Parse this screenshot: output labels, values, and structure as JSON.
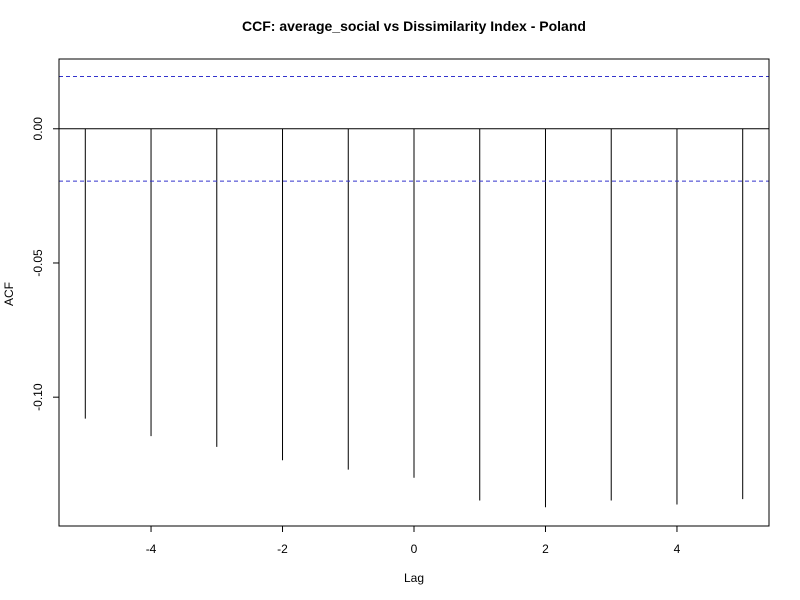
{
  "chart_data": {
    "type": "bar",
    "title": "CCF: average_social vs Dissimilarity Index - Poland",
    "xlabel": "Lag",
    "ylabel": "ACF",
    "xlim": [
      -5.4,
      5.4
    ],
    "ylim": [
      -0.148,
      0.026
    ],
    "x_ticks": [
      -4,
      -2,
      0,
      2,
      4
    ],
    "x_tick_labels": [
      "-4",
      "-2",
      "0",
      "2",
      "4"
    ],
    "y_ticks": [
      0.0,
      -0.05,
      -0.1
    ],
    "y_tick_labels": [
      "0.00",
      "-0.05",
      "-0.10"
    ],
    "lags": [
      -5,
      -4,
      -3,
      -2,
      -1,
      0,
      1,
      2,
      3,
      4,
      5
    ],
    "values": [
      -0.108,
      -0.1145,
      -0.1185,
      -0.1235,
      -0.127,
      -0.13,
      -0.1385,
      -0.141,
      -0.1385,
      -0.14,
      -0.138
    ],
    "confidence_bound": 0.0195,
    "confidence_line_color": "#3333cc",
    "zero_line": true,
    "grid": false
  }
}
